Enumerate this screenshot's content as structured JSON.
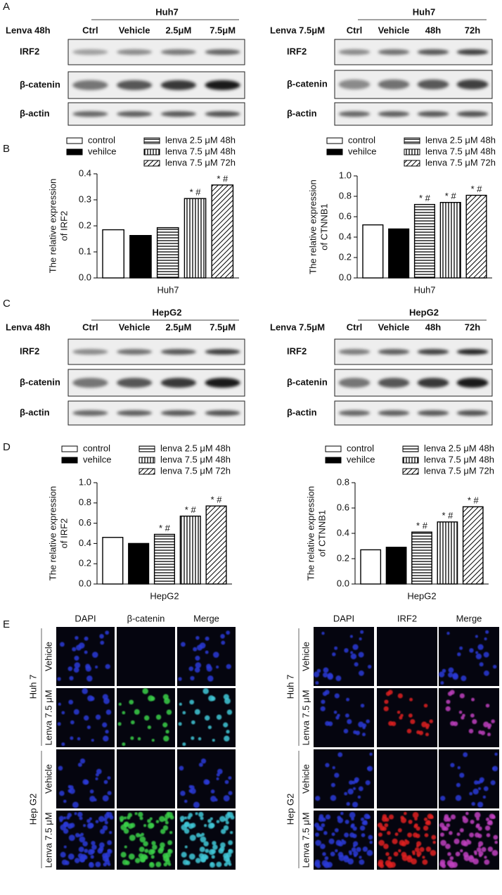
{
  "panel_labels": [
    "A",
    "B",
    "C",
    "D",
    "E"
  ],
  "blots": [
    {
      "header": "Huh7",
      "treatment": "Lenva 48h",
      "lanes": [
        "Ctrl",
        "Vehicle",
        "2.5μM",
        "7.5μM"
      ],
      "rows": [
        "IRF2",
        "β-catenin",
        "β-actin"
      ]
    },
    {
      "header": "Huh7",
      "treatment": "Lenva 7.5μM",
      "lanes": [
        "Ctrl",
        "Vehicle",
        "48h",
        "72h"
      ],
      "rows": [
        "IRF2",
        "β-catenin",
        "β-actin"
      ]
    },
    {
      "header": "HepG2",
      "treatment": "Lenva 48h",
      "lanes": [
        "Ctrl",
        "Vehicle",
        "2.5μM",
        "7.5μM"
      ],
      "rows": [
        "IRF2",
        "β-catenin",
        "β-actin"
      ]
    },
    {
      "header": "HepG2",
      "treatment": "Lenva 7.5μM",
      "lanes": [
        "Ctrl",
        "Vehicle",
        "48h",
        "72h"
      ],
      "rows": [
        "IRF2",
        "β-catenin",
        "β-actin"
      ]
    }
  ],
  "chart_data": [
    {
      "type": "bar",
      "y_label": [
        "The relative expression",
        "of IRF2"
      ],
      "x_label": "Huh7",
      "ylim": [
        0,
        0.4
      ],
      "yticks": [
        {
          "value": 0,
          "label": "0.0"
        },
        0.1,
        0.2,
        0.3,
        0.4
      ],
      "series": [
        {
          "name": "control",
          "pattern": "solid",
          "color": "#ffffff",
          "values": [
            0.185
          ]
        },
        {
          "name": "vehilce",
          "pattern": "solid",
          "color": "#000000",
          "values": [
            0.163
          ]
        },
        {
          "name": "lenva 2.5 μM 48h",
          "pattern": "horizontal",
          "color": "#000000",
          "values": [
            0.193
          ]
        },
        {
          "name": "lenva 7.5 μM 48h",
          "pattern": "vertical",
          "color": "#000000",
          "values": [
            0.305
          ]
        },
        {
          "name": "lenva 7.5 μM 72h",
          "pattern": "diagonal",
          "color": "#000000",
          "values": [
            0.357
          ]
        }
      ],
      "annotations": [
        null,
        null,
        null,
        "* #",
        "* #"
      ]
    },
    {
      "type": "bar",
      "y_label": [
        "The relative expression",
        "of CTNNB1"
      ],
      "x_label": "Huh7",
      "ylim": [
        0,
        1
      ],
      "yticks": [
        {
          "value": 0,
          "label": "0.0"
        },
        0.2,
        0.4,
        0.6,
        0.8,
        {
          "value": 1,
          "label": "1.0"
        }
      ],
      "series": [
        {
          "name": "control",
          "pattern": "solid",
          "color": "#ffffff",
          "values": [
            0.52
          ]
        },
        {
          "name": "vehilce",
          "pattern": "solid",
          "color": "#000000",
          "values": [
            0.48
          ]
        },
        {
          "name": "lenva 2.5 μM 48h",
          "pattern": "horizontal",
          "color": "#000000",
          "values": [
            0.72
          ]
        },
        {
          "name": "lenva 7.5 μM 48h",
          "pattern": "vertical",
          "color": "#000000",
          "values": [
            0.74
          ]
        },
        {
          "name": "lenva 7.5 μM 72h",
          "pattern": "diagonal",
          "color": "#000000",
          "values": [
            0.81
          ]
        }
      ],
      "annotations": [
        null,
        null,
        "* #",
        "* #",
        "* #"
      ]
    },
    {
      "type": "bar",
      "y_label": [
        "The relative expression",
        "of IRF2"
      ],
      "x_label": "HepG2",
      "ylim": [
        0,
        1
      ],
      "yticks": [
        {
          "value": 0,
          "label": "0.0"
        },
        0.2,
        0.4,
        0.6,
        0.8,
        {
          "value": 1,
          "label": "1.0"
        }
      ],
      "series": [
        {
          "name": "control",
          "pattern": "solid",
          "color": "#ffffff",
          "values": [
            0.46
          ]
        },
        {
          "name": "vehilce",
          "pattern": "solid",
          "color": "#000000",
          "values": [
            0.4
          ]
        },
        {
          "name": "lenva 2.5 μM 48h",
          "pattern": "horizontal",
          "color": "#000000",
          "values": [
            0.49
          ]
        },
        {
          "name": "lenva 7.5 μM 48h",
          "pattern": "vertical",
          "color": "#000000",
          "values": [
            0.67
          ]
        },
        {
          "name": "lenva 7.5 μM 72h",
          "pattern": "diagonal",
          "color": "#000000",
          "values": [
            0.77
          ]
        }
      ],
      "annotations": [
        null,
        null,
        "* #",
        "* #",
        "* #"
      ]
    },
    {
      "type": "bar",
      "y_label": [
        "The relative expression",
        "of CTNNB1"
      ],
      "x_label": "HepG2",
      "ylim": [
        0,
        0.8
      ],
      "yticks": [
        {
          "value": 0,
          "label": "0.0"
        },
        0.2,
        0.4,
        0.6,
        0.8
      ],
      "series": [
        {
          "name": "control",
          "pattern": "solid",
          "color": "#ffffff",
          "values": [
            0.27
          ]
        },
        {
          "name": "vehilce",
          "pattern": "solid",
          "color": "#000000",
          "values": [
            0.29
          ]
        },
        {
          "name": "lenva 2.5 μM 48h",
          "pattern": "horizontal",
          "color": "#000000",
          "values": [
            0.41
          ]
        },
        {
          "name": "lenva 7.5 μM 48h",
          "pattern": "vertical",
          "color": "#000000",
          "values": [
            0.49
          ]
        },
        {
          "name": "lenva 7.5 μM 72h",
          "pattern": "diagonal",
          "color": "#000000",
          "values": [
            0.61
          ]
        }
      ],
      "annotations": [
        null,
        null,
        "* #",
        "* #",
        "* #"
      ]
    }
  ],
  "immunofluorescence": [
    {
      "columns": [
        "DAPI",
        "β-catenin",
        "Merge"
      ],
      "groups": [
        {
          "name": "Huh 7",
          "rows": [
            "Vehicle",
            "Lenva 7.5 μM"
          ]
        },
        {
          "name": "Hep G2",
          "rows": [
            "Vehicle",
            "Lenva 7.5 μM"
          ]
        }
      ]
    },
    {
      "columns": [
        "DAPI",
        "IRF2",
        "Merge"
      ],
      "groups": [
        {
          "name": "Huh 7",
          "rows": [
            "Vehicle",
            "Lenva 7.5 μM"
          ]
        },
        {
          "name": "Hep G2",
          "rows": [
            "Vehicle",
            "Lenva 7.5 μM"
          ]
        }
      ]
    }
  ]
}
